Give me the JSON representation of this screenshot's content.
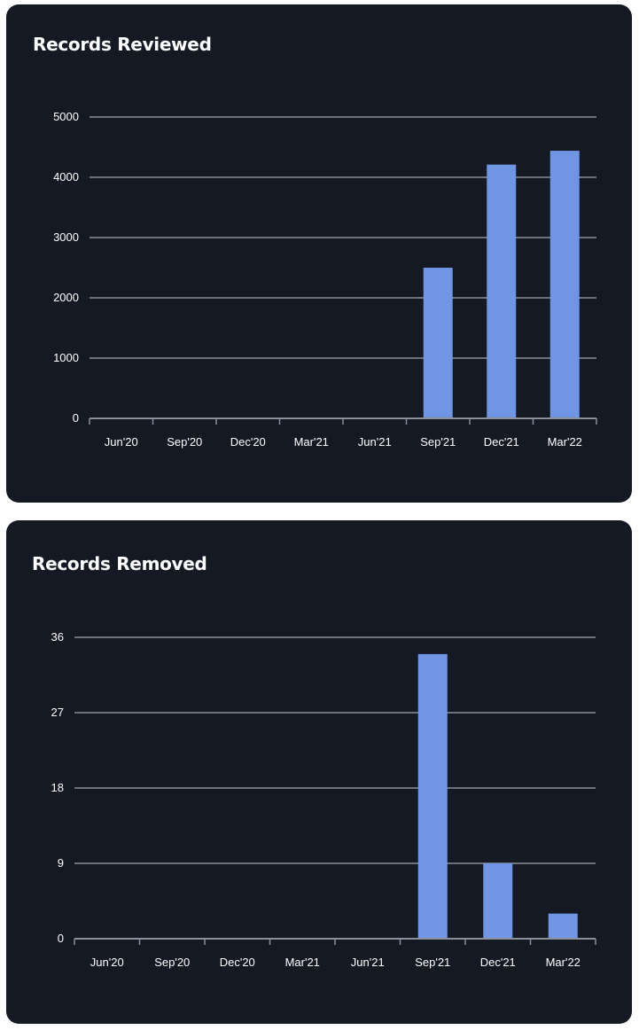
{
  "colors": {
    "page_background": "#ffffff",
    "card_background": "#141924",
    "bar": "#7096e3",
    "gridline": "#8a8f9a",
    "text": "#ffffff"
  },
  "chart_data": [
    {
      "type": "bar",
      "title": "Records Reviewed",
      "categories": [
        "Jun'20",
        "Sep'20",
        "Dec'20",
        "Mar'21",
        "Jun'21",
        "Sep'21",
        "Dec'21",
        "Mar'22"
      ],
      "values": [
        0,
        0,
        0,
        0,
        0,
        2500,
        4210,
        4440
      ],
      "yticks": [
        0,
        1000,
        2000,
        3000,
        4000,
        5000
      ],
      "ylim": [
        0,
        5000
      ],
      "xlabel": "",
      "ylabel": "",
      "grid": true,
      "legend": "none"
    },
    {
      "type": "bar",
      "title": "Records Removed",
      "categories": [
        "Jun'20",
        "Sep'20",
        "Dec'20",
        "Mar'21",
        "Jun'21",
        "Sep'21",
        "Dec'21",
        "Mar'22"
      ],
      "values": [
        0,
        0,
        0,
        0,
        0,
        34,
        9,
        3
      ],
      "yticks": [
        0,
        9,
        18,
        27,
        36
      ],
      "ylim": [
        0,
        36
      ],
      "xlabel": "",
      "ylabel": "",
      "grid": true,
      "legend": "none"
    }
  ]
}
